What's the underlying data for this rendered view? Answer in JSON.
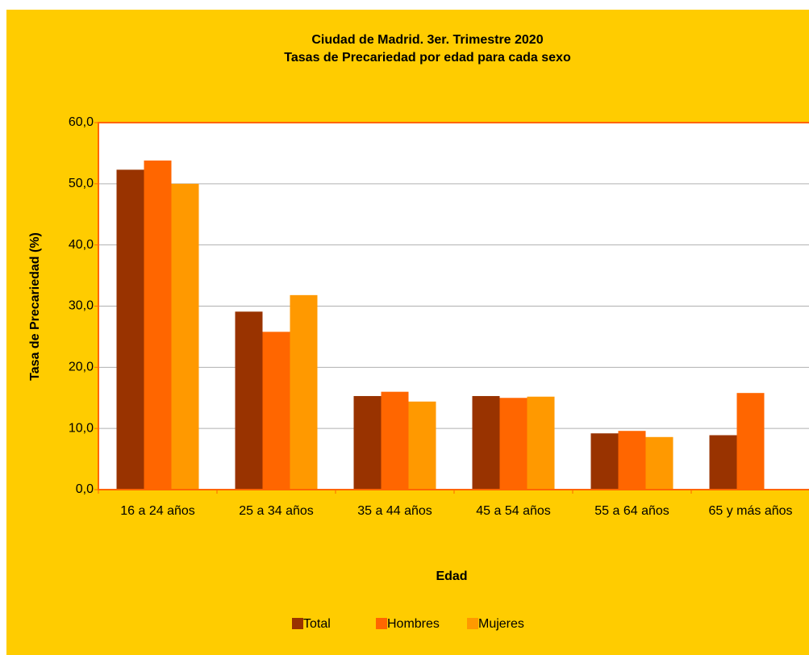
{
  "chart_data": {
    "type": "bar",
    "title": "Ciudad de Madrid. 3er. Trimestre 2020",
    "subtitle": "Tasas de Precariedad por edad para cada sexo",
    "x_label": "Edad",
    "y_label": "Tasa de Precariedad (%)",
    "categories": [
      "16 a 24 años",
      "25 a 34 años",
      "35 a 44 años",
      "45 a 54 años",
      "55 a 64 años",
      "65 y más años"
    ],
    "series": [
      {
        "name": "Total",
        "color": "#993300",
        "values": [
          52.3,
          29.1,
          15.3,
          15.3,
          9.2,
          8.9
        ]
      },
      {
        "name": "Hombres",
        "color": "#FF6600",
        "values": [
          53.8,
          25.8,
          16.0,
          15.0,
          9.6,
          15.8
        ]
      },
      {
        "name": "Mujeres",
        "color": "#FF9900",
        "values": [
          50.0,
          31.8,
          14.4,
          15.2,
          8.6,
          null
        ]
      }
    ],
    "ylim": [
      0,
      60
    ],
    "yticks": [
      {
        "value": 0,
        "label": "0,0"
      },
      {
        "value": 10,
        "label": "10,0"
      },
      {
        "value": 20,
        "label": "20,0"
      },
      {
        "value": 30,
        "label": "30,0"
      },
      {
        "value": 40,
        "label": "40,0"
      },
      {
        "value": 50,
        "label": "50,0"
      },
      {
        "value": 60,
        "label": "60,0"
      }
    ],
    "grid": true,
    "legend": "bottom"
  }
}
